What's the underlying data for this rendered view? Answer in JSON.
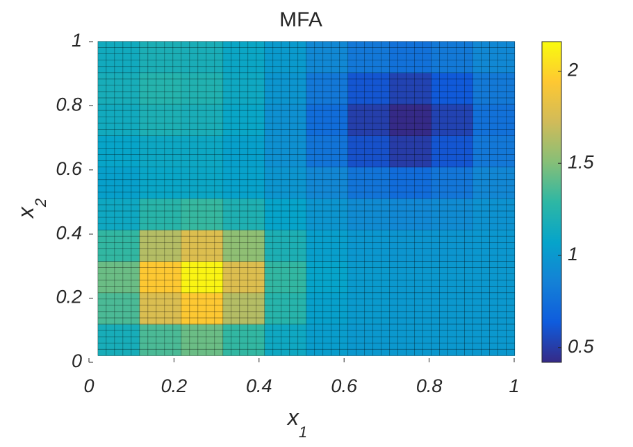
{
  "chart_data": {
    "type": "heatmap",
    "title": "MFA",
    "xlabel": "x",
    "xlabel_sub": "1",
    "ylabel": "x",
    "ylabel_sub": "2",
    "x": [
      0.07,
      0.168,
      0.266,
      0.364,
      0.462,
      0.56,
      0.658,
      0.756,
      0.854,
      0.952
    ],
    "y": [
      0.07,
      0.168,
      0.266,
      0.364,
      0.462,
      0.56,
      0.658,
      0.756,
      0.854,
      0.952
    ],
    "z": [
      [
        1.17,
        1.36,
        1.44,
        1.3,
        1.12,
        1.03,
        1.0,
        1.0,
        1.0,
        1.0
      ],
      [
        1.36,
        1.77,
        1.94,
        1.64,
        1.25,
        1.05,
        1.01,
        1.0,
        1.0,
        1.0
      ],
      [
        1.44,
        1.94,
        2.13,
        1.78,
        1.3,
        1.07,
        1.01,
        1.0,
        1.0,
        1.0
      ],
      [
        1.3,
        1.64,
        1.78,
        1.53,
        1.2,
        1.04,
        0.99,
        0.98,
        0.98,
        0.99
      ],
      [
        1.12,
        1.26,
        1.31,
        1.21,
        1.07,
        0.98,
        0.92,
        0.9,
        0.92,
        0.96
      ],
      [
        1.05,
        1.09,
        1.1,
        1.06,
        0.98,
        0.89,
        0.78,
        0.73,
        0.79,
        0.89
      ],
      [
        1.08,
        1.11,
        1.11,
        1.05,
        0.95,
        0.78,
        0.59,
        0.5,
        0.61,
        0.8
      ],
      [
        1.14,
        1.2,
        1.18,
        1.09,
        0.95,
        0.74,
        0.51,
        0.4,
        0.53,
        0.76
      ],
      [
        1.17,
        1.24,
        1.22,
        1.12,
        0.98,
        0.8,
        0.61,
        0.53,
        0.63,
        0.81
      ],
      [
        1.14,
        1.19,
        1.18,
        1.1,
        1.01,
        0.9,
        0.8,
        0.76,
        0.81,
        0.9
      ]
    ],
    "xlim": [
      0,
      1
    ],
    "ylim": [
      0,
      1
    ],
    "xticks": [
      0,
      0.2,
      0.4,
      0.6,
      0.8,
      1
    ],
    "yticks": [
      0,
      0.2,
      0.4,
      0.6,
      0.8,
      1
    ],
    "colormap": "parula",
    "clim": [
      0.42,
      2.16
    ],
    "cticks": [
      0.5,
      1,
      1.5,
      2
    ]
  }
}
